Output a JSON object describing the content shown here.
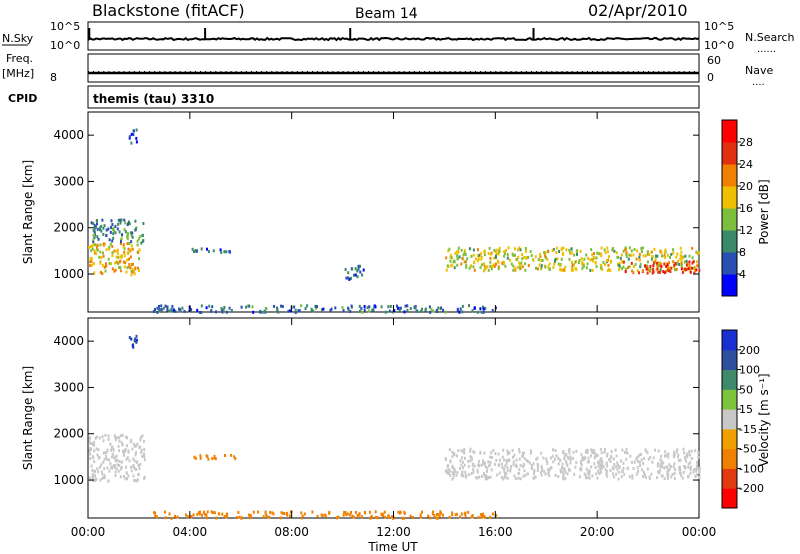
{
  "header": {
    "station": "Blackstone (fitACF)",
    "beam": "Beam 14",
    "date": "02/Apr/2010"
  },
  "side_labels": {
    "nsky": "N.Sky",
    "nsky_ticks": [
      "10^5",
      "10^0"
    ],
    "nsearch": "N.Search",
    "nsearch_ticks": [
      "10^5",
      "10^0"
    ],
    "freq_top": "Freq.",
    "freq_unit": "[MHz]",
    "freq_tick": "8",
    "cpid": "CPID",
    "nave": "Nave",
    "nave_ticks": [
      "60",
      "0"
    ],
    "dotted": "......",
    "dotted_short": "....",
    "cpid_value": "themis (tau) 3310"
  },
  "panels": {
    "power_ylabel": "Slant Range [km]",
    "velocity_ylabel": "Slant Range [km]",
    "yticks": [
      "1000",
      "2000",
      "3000",
      "4000"
    ],
    "xlabel": "Time UT",
    "xticks": [
      "00:00",
      "04:00",
      "08:00",
      "12:00",
      "16:00",
      "20:00",
      "00:00"
    ]
  },
  "colorbars": {
    "power": {
      "label": "Power [dB]",
      "ticks": [
        "4",
        "8",
        "12",
        "16",
        "20",
        "24",
        "28"
      ],
      "colors": [
        "#0000ff",
        "#2a4fb0",
        "#3a8a6a",
        "#7cbf3c",
        "#f0c000",
        "#f08000",
        "#e03010",
        "#ff0000"
      ]
    },
    "velocity": {
      "label": "Velocity [m s⁻¹]",
      "ticks": [
        "200",
        "100",
        "50",
        "15",
        "-15",
        "-50",
        "-100",
        "-200"
      ],
      "colors": [
        "#1a2fd0",
        "#2e4f9e",
        "#3f8a6a",
        "#7cc43a",
        "#c8c8c8",
        "#f0a000",
        "#f08000",
        "#e03a10",
        "#ff0000"
      ]
    }
  },
  "chart_data": [
    {
      "type": "line",
      "title": "N.Sky / N.Search",
      "x_range_hours": [
        0,
        24
      ],
      "y_scale": "log",
      "y_ticks": [
        "10^0",
        "10^5"
      ],
      "series": [
        {
          "name": "N.Sky",
          "spikes_at_hours": [
            0.05,
            4.6,
            10.3,
            17.5
          ]
        }
      ]
    },
    {
      "type": "line",
      "title": "Freq. [MHz] / Nave",
      "x_range_hours": [
        0,
        24
      ],
      "freq_mhz_level": 10.5,
      "nave_level": 15
    },
    {
      "type": "heatmap",
      "panel": "power",
      "xlabel": "Time UT",
      "ylabel": "Slant Range [km]",
      "xlim": [
        "00:00",
        "00:00"
      ],
      "ylim": [
        180,
        4500
      ],
      "zlabel": "Power [dB]",
      "zlim": [
        0,
        30
      ],
      "features": [
        {
          "t_start": 0.0,
          "t_end": 2.0,
          "range_lo": 1000,
          "range_hi": 1700,
          "power": 18
        },
        {
          "t_start": 0.1,
          "t_end": 2.2,
          "range_lo": 1700,
          "range_hi": 2200,
          "power": 9
        },
        {
          "t_start": 1.5,
          "t_end": 1.9,
          "range_lo": 3850,
          "range_hi": 4150,
          "power": 6
        },
        {
          "t_start": 4.0,
          "t_end": 5.8,
          "range_lo": 1480,
          "range_hi": 1580,
          "power": 7
        },
        {
          "t_start": 10.0,
          "t_end": 10.8,
          "range_lo": 900,
          "range_hi": 1200,
          "power": 7
        },
        {
          "t_start": 14.0,
          "t_end": 24.0,
          "range_lo": 1100,
          "range_hi": 1600,
          "power": 16
        },
        {
          "t_start": 21.0,
          "t_end": 24.0,
          "range_lo": 1050,
          "range_hi": 1300,
          "power": 26
        },
        {
          "t_start": 2.5,
          "t_end": 16.0,
          "range_lo": 200,
          "range_hi": 350,
          "power": 8
        }
      ]
    },
    {
      "type": "heatmap",
      "panel": "velocity",
      "xlabel": "Time UT",
      "ylabel": "Slant Range [km]",
      "xlim": [
        "00:00",
        "00:00"
      ],
      "ylim": [
        180,
        4500
      ],
      "zlabel": "Velocity [m s⁻¹]",
      "zlim": [
        -200,
        200
      ],
      "features": [
        {
          "t_start": 0.0,
          "t_end": 2.2,
          "range_lo": 1000,
          "range_hi": 2000,
          "velocity": 0
        },
        {
          "t_start": 1.5,
          "t_end": 1.9,
          "range_lo": 3850,
          "range_hi": 4150,
          "velocity": 200
        },
        {
          "t_start": 4.0,
          "t_end": 5.8,
          "range_lo": 1480,
          "range_hi": 1580,
          "velocity": -60
        },
        {
          "t_start": 14.0,
          "t_end": 24.0,
          "range_lo": 1050,
          "range_hi": 1700,
          "velocity": 0
        },
        {
          "t_start": 2.5,
          "t_end": 16.0,
          "range_lo": 200,
          "range_hi": 350,
          "velocity": -60
        }
      ]
    }
  ]
}
